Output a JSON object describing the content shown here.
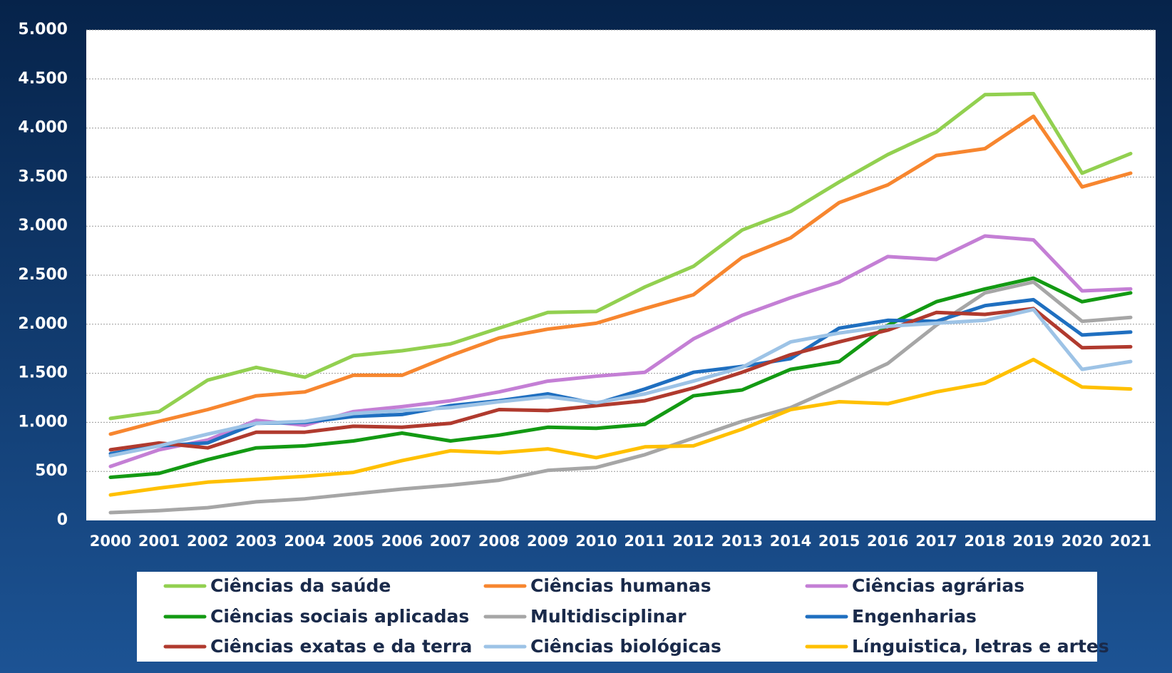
{
  "chart_data": {
    "type": "line",
    "categories": [
      "2000",
      "2001",
      "2002",
      "2003",
      "2004",
      "2005",
      "2006",
      "2007",
      "2008",
      "2009",
      "2010",
      "2011",
      "2012",
      "2013",
      "2014",
      "2015",
      "2016",
      "2017",
      "2018",
      "2019",
      "2020",
      "2021"
    ],
    "ylim": [
      0,
      5000
    ],
    "yticks": [
      0,
      500,
      {
        "value": 1000,
        "label": "1.000"
      },
      {
        "value": 1500,
        "label": "1.500"
      },
      {
        "value": 2000,
        "label": "2.000"
      },
      {
        "value": 2500,
        "label": "2.500"
      },
      {
        "value": 3000,
        "label": "3.000"
      },
      {
        "value": 3500,
        "label": "3.500"
      },
      {
        "value": 4000,
        "label": "4.000"
      },
      {
        "value": 4500,
        "label": "4.500"
      },
      {
        "value": 5000,
        "label": "5.000"
      }
    ],
    "grid": true,
    "legend": "bottom",
    "series": [
      {
        "name": "Ciências da saúde",
        "color": "#92d050",
        "values": [
          1040,
          1110,
          1430,
          1560,
          1460,
          1680,
          1730,
          1800,
          1960,
          2120,
          2130,
          2380,
          2590,
          2960,
          3150,
          3450,
          3730,
          3960,
          4340,
          4350,
          3540,
          3740
        ]
      },
      {
        "name": "Ciências humanas",
        "color": "#f7862f",
        "values": [
          880,
          1010,
          1130,
          1270,
          1310,
          1480,
          1480,
          1680,
          1860,
          1950,
          2010,
          2160,
          2300,
          2680,
          2880,
          3240,
          3420,
          3720,
          3790,
          4120,
          3400,
          3540
        ]
      },
      {
        "name": "Ciências agrárias",
        "color": "#c47fd5",
        "values": [
          550,
          720,
          820,
          1020,
          970,
          1110,
          1160,
          1220,
          1310,
          1420,
          1470,
          1510,
          1850,
          2090,
          2270,
          2430,
          2690,
          2660,
          2900,
          2860,
          2340,
          2360
        ]
      },
      {
        "name": "Ciências sociais aplicadas",
        "color": "#139a13",
        "values": [
          440,
          480,
          620,
          740,
          760,
          810,
          890,
          810,
          870,
          950,
          940,
          980,
          1270,
          1330,
          1540,
          1620,
          1990,
          2230,
          2360,
          2470,
          2230,
          2320
        ]
      },
      {
        "name": "Multidisciplinar",
        "color": "#a6a6a6",
        "values": [
          80,
          100,
          130,
          190,
          220,
          270,
          320,
          360,
          410,
          510,
          540,
          670,
          840,
          1010,
          1150,
          1370,
          1600,
          1990,
          2320,
          2430,
          2030,
          2070
        ]
      },
      {
        "name": "Engenharias",
        "color": "#1f6fc0",
        "values": [
          680,
          760,
          790,
          990,
          1000,
          1060,
          1080,
          1170,
          1220,
          1290,
          1190,
          1340,
          1510,
          1570,
          1650,
          1960,
          2040,
          2030,
          2190,
          2250,
          1890,
          1920
        ]
      },
      {
        "name": "Ciências exatas e da terra",
        "color": "#b03a2e",
        "values": [
          720,
          790,
          740,
          900,
          900,
          960,
          950,
          990,
          1130,
          1120,
          1170,
          1220,
          1350,
          1510,
          1690,
          1820,
          1940,
          2120,
          2100,
          2160,
          1760,
          1770
        ]
      },
      {
        "name": "Ciências biológicas",
        "color": "#9dc3e6",
        "values": [
          660,
          760,
          880,
          990,
          1010,
          1090,
          1120,
          1150,
          1210,
          1260,
          1200,
          1290,
          1420,
          1560,
          1820,
          1910,
          1980,
          2010,
          2040,
          2150,
          1540,
          1620
        ]
      },
      {
        "name": "Línguistica, letras e artes",
        "color": "#ffc000",
        "values": [
          260,
          330,
          390,
          420,
          450,
          490,
          610,
          710,
          690,
          730,
          640,
          750,
          760,
          930,
          1130,
          1210,
          1190,
          1310,
          1400,
          1640,
          1360,
          1340
        ]
      }
    ]
  }
}
